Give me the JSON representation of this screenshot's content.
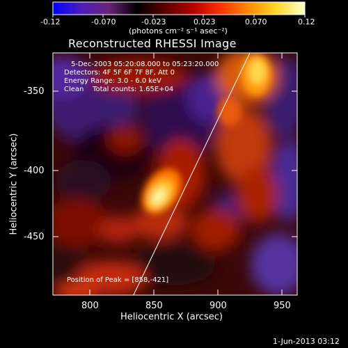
{
  "colorbar": {
    "tick_labels": [
      "-0.12",
      "-0.070",
      "-0.023",
      "0.023",
      "0.070",
      "0.12"
    ],
    "units_label": "(photons cm⁻² s⁻¹ asec⁻²)",
    "range": [
      -0.12,
      0.12
    ],
    "colormap": [
      "#0000ff",
      "#4b1dbd",
      "#6a2478",
      "#000000",
      "#5a0000",
      "#b30000",
      "#ff3200",
      "#ff8a00",
      "#ffd82a",
      "#ffffd2"
    ]
  },
  "plot": {
    "title": "Reconstructed RHESSI Image",
    "xlabel": "Heliocentric X (arcsec)",
    "ylabel": "Heliocentric Y (arcsec)",
    "x_ticks": [
      "800",
      "850",
      "900",
      "950"
    ],
    "y_ticks": [
      "-350",
      "-400",
      "-450"
    ],
    "xlim": [
      771,
      962
    ],
    "ylim": [
      -497,
      -314
    ],
    "info_lines": [
      "5-Dec-2003 05:20:08.000 to 05:23:20.000",
      "Detectors: 4F 5F 6F 7F 8F, Att 0",
      "Energy Range: 3.0 - 6.0 keV",
      "Clean    Total counts: 1.65E+04"
    ],
    "peak_label": "Position of Peak = [858,-421]",
    "peak": [
      858,
      -421
    ],
    "limb_points": [
      [
        834,
        -497
      ],
      [
        925,
        -314
      ]
    ]
  },
  "footer": {
    "date": "1-Jun-2013 03:12"
  }
}
